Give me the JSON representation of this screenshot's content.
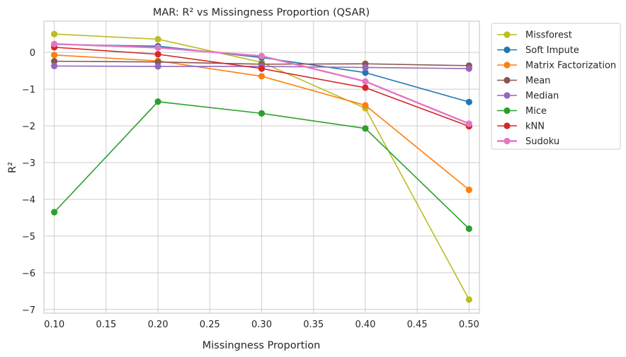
{
  "chart_data": {
    "type": "line",
    "title": "MAR: R² vs Missingness Proportion (QSAR)",
    "xlabel": "Missingness Proportion",
    "ylabel": "R²",
    "xlim": [
      0.09,
      0.51
    ],
    "ylim": [
      -7.1,
      0.85
    ],
    "xticks": [
      "0.10",
      "0.15",
      "0.20",
      "0.25",
      "0.30",
      "0.35",
      "0.40",
      "0.45",
      "0.50"
    ],
    "yticks": [
      "0",
      "−1",
      "−2",
      "−3",
      "−4",
      "−5",
      "−6",
      "−7"
    ],
    "x": [
      0.1,
      0.2,
      0.3,
      0.4,
      0.5
    ],
    "grid": true,
    "legend_position": "outside-top-right",
    "series": [
      {
        "name": "Missforest",
        "color": "#bcbd22",
        "values": [
          0.5,
          0.36,
          -0.27,
          -1.52,
          -6.73
        ]
      },
      {
        "name": "Soft Impute",
        "color": "#1f77b4",
        "values": [
          0.22,
          0.17,
          -0.14,
          -0.55,
          -1.35
        ]
      },
      {
        "name": "Matrix Factorization",
        "color": "#ff7f0e",
        "values": [
          -0.07,
          -0.23,
          -0.65,
          -1.44,
          -3.74
        ]
      },
      {
        "name": "Mean",
        "color": "#8c564b",
        "values": [
          -0.24,
          -0.26,
          -0.32,
          -0.31,
          -0.36
        ]
      },
      {
        "name": "Median",
        "color": "#9467bd",
        "values": [
          -0.37,
          -0.38,
          -0.38,
          -0.41,
          -0.44
        ]
      },
      {
        "name": "Mice",
        "color": "#2ca02c",
        "values": [
          -4.35,
          -1.34,
          -1.66,
          -2.07,
          -4.8
        ]
      },
      {
        "name": "kNN",
        "color": "#d62728",
        "values": [
          0.14,
          -0.05,
          -0.44,
          -0.96,
          -2.01
        ]
      },
      {
        "name": "Sudoku",
        "color": "#e377c2",
        "values": [
          0.23,
          0.13,
          -0.1,
          -0.79,
          -1.94
        ]
      }
    ]
  }
}
